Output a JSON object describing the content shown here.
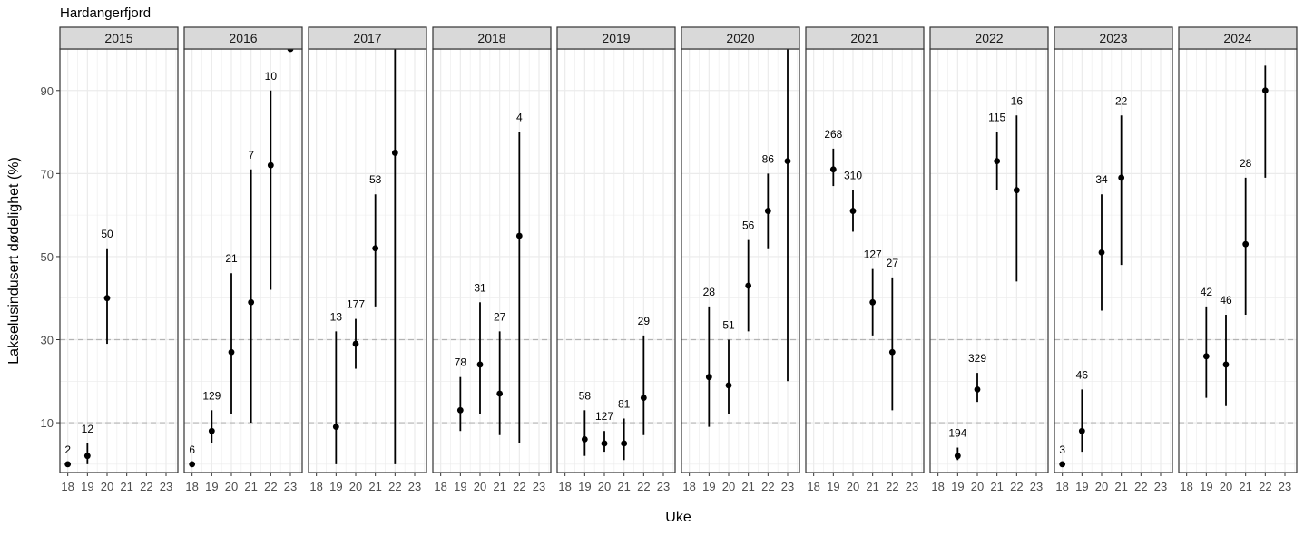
{
  "chart_data": {
    "type": "scatter",
    "title": "Hardangerfjord",
    "xlabel": "Uke",
    "ylabel": "Lakselusindusert dødelighet (%)",
    "ylim": [
      -2,
      100
    ],
    "yticks": [
      10,
      30,
      50,
      70,
      90
    ],
    "xticks": [
      18,
      19,
      20,
      21,
      22,
      23
    ],
    "reference_lines": [
      10,
      30
    ],
    "grid": true,
    "colors": {
      "strip": "#d9d9d9",
      "border": "#333333",
      "point": "#000000",
      "grid": "#ebebeb",
      "ref_line": "#b3b3b3"
    },
    "facets": [
      {
        "year": "2015",
        "points": [
          {
            "week": 18,
            "value": 0,
            "low": null,
            "high": null,
            "label": "2"
          },
          {
            "week": 19,
            "value": 2,
            "low": 0,
            "high": 5,
            "label": "12"
          },
          {
            "week": 20,
            "value": 40,
            "low": 29,
            "high": 52,
            "label": "50"
          }
        ]
      },
      {
        "year": "2016",
        "points": [
          {
            "week": 18,
            "value": 0,
            "low": null,
            "high": null,
            "label": "6"
          },
          {
            "week": 19,
            "value": 8,
            "low": 5,
            "high": 13,
            "label": "129"
          },
          {
            "week": 20,
            "value": 27,
            "low": 12,
            "high": 46,
            "label": "21"
          },
          {
            "week": 21,
            "value": 39,
            "low": 10,
            "high": 71,
            "label": "7"
          },
          {
            "week": 22,
            "value": 72,
            "low": 42,
            "high": 90,
            "label": "10"
          },
          {
            "week": 23,
            "value": 100,
            "low": null,
            "high": null,
            "label": ""
          }
        ]
      },
      {
        "year": "2017",
        "points": [
          {
            "week": 19,
            "value": 9,
            "low": 0,
            "high": 32,
            "label": "13"
          },
          {
            "week": 20,
            "value": 29,
            "low": 23,
            "high": 35,
            "label": "177"
          },
          {
            "week": 21,
            "value": 52,
            "low": 38,
            "high": 65,
            "label": "53"
          },
          {
            "week": 22,
            "value": 75,
            "low": 0,
            "high": 100,
            "label": ""
          }
        ]
      },
      {
        "year": "2018",
        "points": [
          {
            "week": 19,
            "value": 13,
            "low": 8,
            "high": 21,
            "label": "78"
          },
          {
            "week": 20,
            "value": 24,
            "low": 12,
            "high": 39,
            "label": "31"
          },
          {
            "week": 21,
            "value": 17,
            "low": 7,
            "high": 32,
            "label": "27"
          },
          {
            "week": 22,
            "value": 55,
            "low": 5,
            "high": 80,
            "label": "4"
          }
        ]
      },
      {
        "year": "2019",
        "points": [
          {
            "week": 19,
            "value": 6,
            "low": 2,
            "high": 13,
            "label": "58"
          },
          {
            "week": 20,
            "value": 5,
            "low": 3,
            "high": 8,
            "label": "127"
          },
          {
            "week": 21,
            "value": 5,
            "low": 1,
            "high": 11,
            "label": "81"
          },
          {
            "week": 22,
            "value": 16,
            "low": 7,
            "high": 31,
            "label": "29"
          }
        ]
      },
      {
        "year": "2020",
        "points": [
          {
            "week": 19,
            "value": 21,
            "low": 9,
            "high": 38,
            "label": "28"
          },
          {
            "week": 20,
            "value": 19,
            "low": 12,
            "high": 30,
            "label": "51"
          },
          {
            "week": 21,
            "value": 43,
            "low": 32,
            "high": 54,
            "label": "56"
          },
          {
            "week": 22,
            "value": 61,
            "low": 52,
            "high": 70,
            "label": "86"
          },
          {
            "week": 23,
            "value": 73,
            "low": 20,
            "high": 100,
            "label": ""
          }
        ]
      },
      {
        "year": "2021",
        "points": [
          {
            "week": 19,
            "value": 71,
            "low": 67,
            "high": 76,
            "label": "268"
          },
          {
            "week": 20,
            "value": 61,
            "low": 56,
            "high": 66,
            "label": "310"
          },
          {
            "week": 21,
            "value": 39,
            "low": 31,
            "high": 47,
            "label": "127"
          },
          {
            "week": 22,
            "value": 27,
            "low": 13,
            "high": 45,
            "label": "27"
          }
        ]
      },
      {
        "year": "2022",
        "points": [
          {
            "week": 19,
            "value": 2,
            "low": 1,
            "high": 4,
            "label": "194"
          },
          {
            "week": 20,
            "value": 18,
            "low": 15,
            "high": 22,
            "label": "329"
          },
          {
            "week": 21,
            "value": 73,
            "low": 66,
            "high": 80,
            "label": "115"
          },
          {
            "week": 22,
            "value": 66,
            "low": 44,
            "high": 84,
            "label": "16"
          }
        ]
      },
      {
        "year": "2023",
        "points": [
          {
            "week": 18,
            "value": 0,
            "low": null,
            "high": null,
            "label": "3"
          },
          {
            "week": 19,
            "value": 8,
            "low": 3,
            "high": 18,
            "label": "46"
          },
          {
            "week": 20,
            "value": 51,
            "low": 37,
            "high": 65,
            "label": "34"
          },
          {
            "week": 21,
            "value": 69,
            "low": 48,
            "high": 84,
            "label": "22"
          }
        ]
      },
      {
        "year": "2024",
        "points": [
          {
            "week": 19,
            "value": 26,
            "low": 16,
            "high": 38,
            "label": "42"
          },
          {
            "week": 20,
            "value": 24,
            "low": 14,
            "high": 36,
            "label": "46"
          },
          {
            "week": 21,
            "value": 53,
            "low": 36,
            "high": 69,
            "label": "28"
          },
          {
            "week": 22,
            "value": 90,
            "low": 69,
            "high": 96,
            "label": ""
          }
        ]
      }
    ]
  }
}
